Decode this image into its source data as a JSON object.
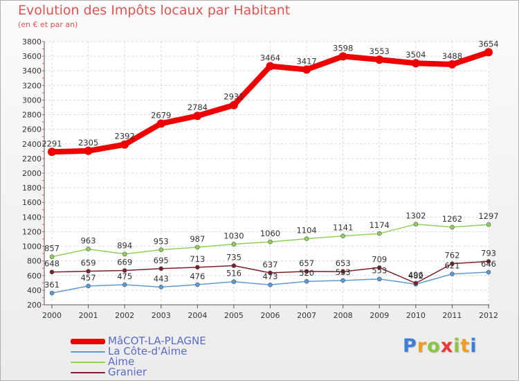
{
  "chart_data": {
    "type": "line",
    "title": "Evolution des Impôts locaux par Habitant",
    "subtitle": "(en € et par an)",
    "x": [
      "2000",
      "2001",
      "2002",
      "2003",
      "2004",
      "2005",
      "2006",
      "2007",
      "2008",
      "2009",
      "2010",
      "2011",
      "2012"
    ],
    "ylim": [
      200,
      3800
    ],
    "yticks": [
      200,
      400,
      600,
      800,
      1000,
      1200,
      1400,
      1600,
      1800,
      2000,
      2200,
      2400,
      2600,
      2800,
      3000,
      3200,
      3400,
      3600,
      3800
    ],
    "grid": true,
    "legend_position": "bottom-left",
    "series": [
      {
        "name": "MâCOT-LA-PLAGNE",
        "color": "#ee0000",
        "values": [
          2291,
          2305,
          2392,
          2679,
          2784,
          2931,
          3464,
          3417,
          3598,
          3553,
          3504,
          3488,
          3654
        ]
      },
      {
        "name": "La Côte-d'Aime",
        "color": "#5b9bd5",
        "values": [
          361,
          457,
          475,
          443,
          476,
          516,
          473,
          520,
          533,
          553,
          482,
          621,
          646
        ]
      },
      {
        "name": "Aime",
        "color": "#8fd158",
        "values": [
          857,
          963,
          894,
          953,
          987,
          1030,
          1060,
          1104,
          1141,
          1174,
          1302,
          1262,
          1297
        ]
      },
      {
        "name": "Granier",
        "color": "#7a1f2b",
        "values": [
          648,
          659,
          669,
          695,
          713,
          735,
          637,
          657,
          653,
          709,
          496,
          762,
          793
        ]
      }
    ]
  },
  "legend": {
    "items": [
      {
        "label": "MâCOT-LA-PLAGNE",
        "color": "#ee0000"
      },
      {
        "label": "La Côte-d'Aime",
        "color": "#5b9bd5"
      },
      {
        "label": "Aime",
        "color": "#8fd158"
      },
      {
        "label": "Granier",
        "color": "#7a1f2b"
      }
    ]
  },
  "brand": {
    "letters": [
      "P",
      "r",
      "o",
      "x",
      "i",
      "t",
      "i"
    ],
    "colors": [
      "#3d7fd6",
      "#f39c1f",
      "#8cc63f",
      "#e83a33",
      "#8cc63f",
      "#f39c1f",
      "#3d7fd6"
    ]
  }
}
